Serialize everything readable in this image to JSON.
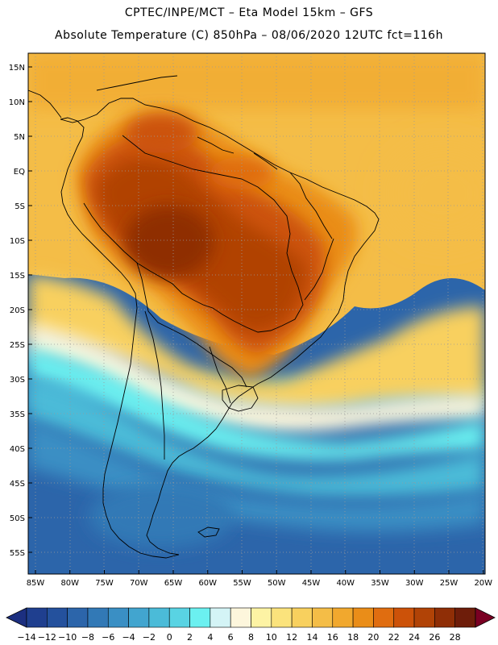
{
  "header": {
    "line1": "CPTEC/INPE/MCT –  Eta Model 15km – GFS",
    "line2": "Absolute Temperature (C) 850hPa – 08/06/2020 12UTC fct=116h"
  },
  "axes": {
    "lat_labels": [
      "15N",
      "10N",
      "5N",
      "EQ",
      "5S",
      "10S",
      "15S",
      "20S",
      "25S",
      "30S",
      "35S",
      "40S",
      "45S",
      "50S",
      "55S"
    ],
    "lon_labels": [
      "85W",
      "80W",
      "75W",
      "70W",
      "65W",
      "60W",
      "55W",
      "50W",
      "45W",
      "40W",
      "35W",
      "30W",
      "25W",
      "20W"
    ]
  },
  "legend": {
    "labels": [
      "-14",
      "-12",
      "-10",
      "-8",
      "-6",
      "-4",
      "-2",
      "0",
      "2",
      "4",
      "6",
      "8",
      "10",
      "12",
      "14",
      "16",
      "18",
      "20",
      "22",
      "24",
      "26",
      "28"
    ],
    "colors": [
      "#1f3f8f",
      "#24519d",
      "#2c65aa",
      "#3279b6",
      "#3a8fc4",
      "#42a5cf",
      "#4bbbd8",
      "#59d3e3",
      "#6bf0f0",
      "#d4f4f6",
      "#fdf6dc",
      "#fdf3a4",
      "#fbe37c",
      "#f8d05e",
      "#f4bd47",
      "#f1a82e",
      "#ea8d18",
      "#e06d10",
      "#cc5209",
      "#b14306",
      "#8f2e06",
      "#6e1d0a"
    ],
    "under_color": "#1c2f80",
    "over_color": "#7a0023"
  }
}
